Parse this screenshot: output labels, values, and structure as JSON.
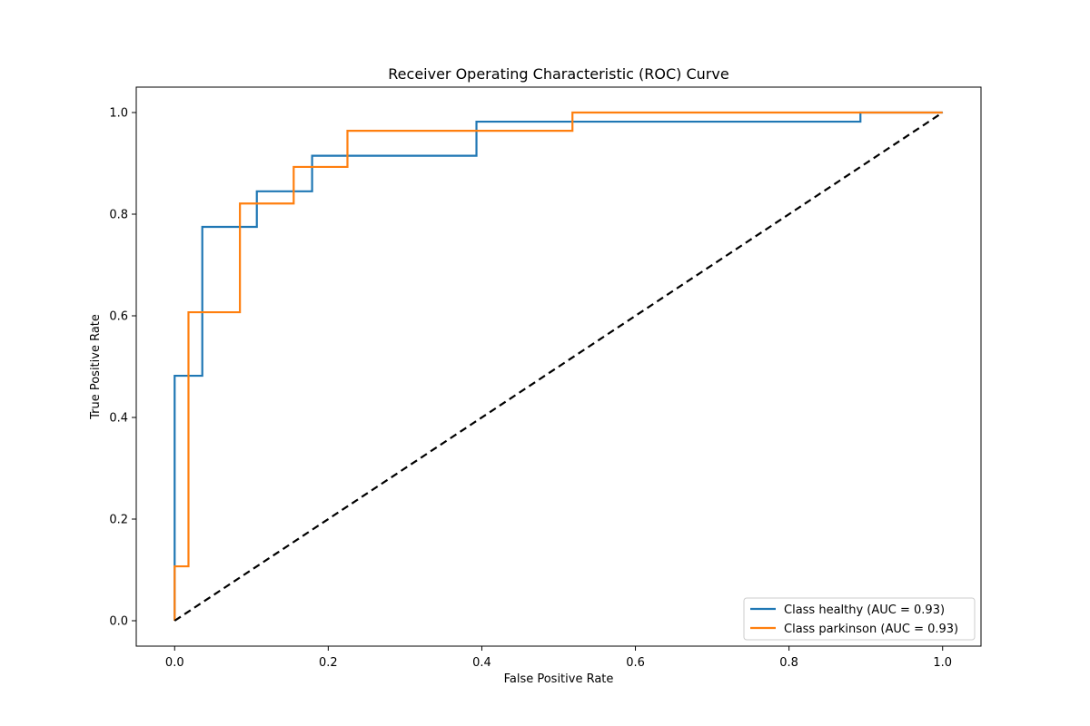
{
  "chart_data": {
    "type": "line",
    "title": "Receiver Operating Characteristic (ROC) Curve",
    "xlabel": "False Positive Rate",
    "ylabel": "True Positive Rate",
    "xlim": [
      -0.05,
      1.05
    ],
    "ylim": [
      -0.05,
      1.05
    ],
    "x_ticks": [
      "0.0",
      "0.2",
      "0.4",
      "0.6",
      "0.8",
      "1.0"
    ],
    "y_ticks": [
      "0.0",
      "0.2",
      "0.4",
      "0.6",
      "0.8",
      "1.0"
    ],
    "grid": false,
    "legend_position": "lower-right",
    "series": [
      {
        "name": "Class healthy (AUC = 0.93)",
        "color": "#1f77b4",
        "x": [
          0.0,
          0.0,
          0.0,
          0.036,
          0.036,
          0.107,
          0.107,
          0.179,
          0.179,
          0.393,
          0.393,
          0.893,
          0.893,
          1.0
        ],
        "y": [
          0.0,
          0.107,
          0.482,
          0.482,
          0.775,
          0.775,
          0.845,
          0.845,
          0.915,
          0.915,
          0.982,
          0.982,
          1.0,
          1.0
        ]
      },
      {
        "name": "Class parkinson (AUC = 0.93)",
        "color": "#ff7f0e",
        "x": [
          0.0,
          0.0,
          0.018,
          0.018,
          0.085,
          0.085,
          0.155,
          0.155,
          0.225,
          0.225,
          0.518,
          0.518,
          1.0
        ],
        "y": [
          0.0,
          0.107,
          0.107,
          0.607,
          0.607,
          0.821,
          0.821,
          0.893,
          0.893,
          0.964,
          0.964,
          1.0,
          1.0
        ]
      },
      {
        "name": "",
        "color": "#000000",
        "dashed": true,
        "x": [
          0.0,
          1.0
        ],
        "y": [
          0.0,
          1.0
        ]
      }
    ]
  }
}
